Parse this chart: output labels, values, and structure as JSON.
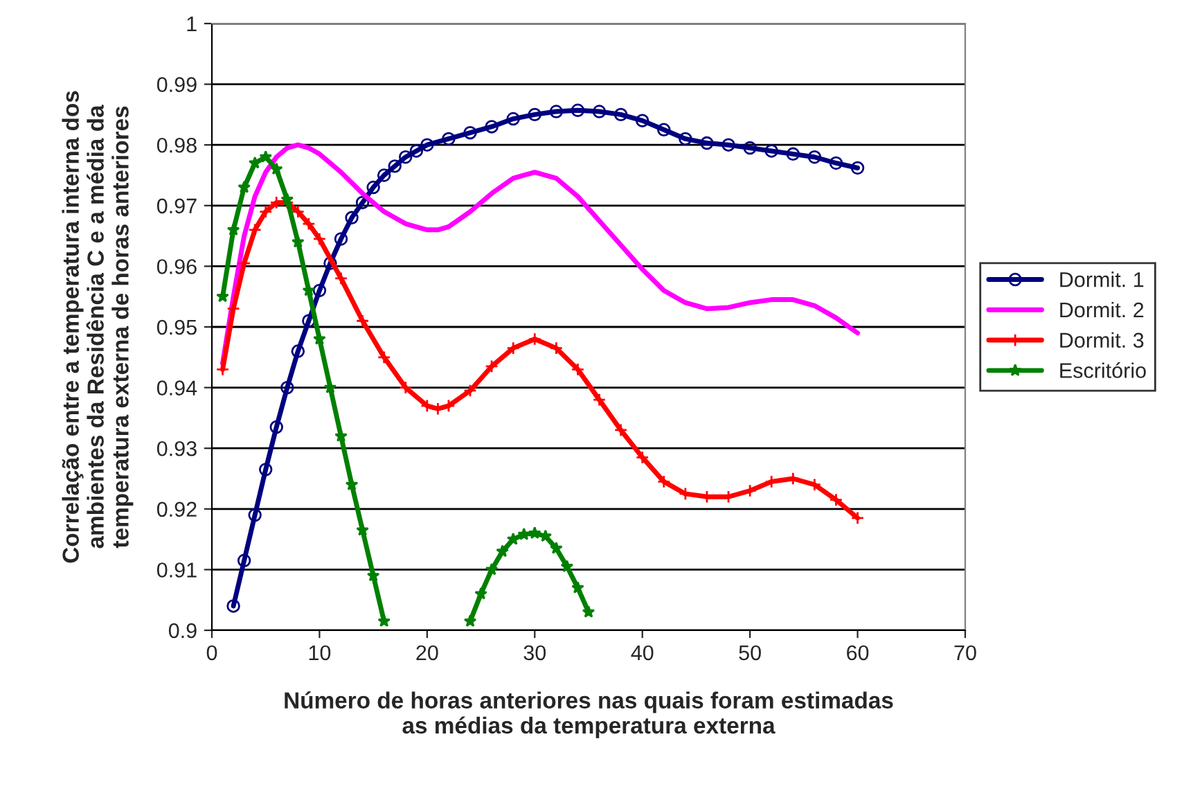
{
  "chart_data": {
    "type": "line",
    "xlabel": "Número de horas anteriores nas quais foram estimadas\nas médias da temperatura externa",
    "ylabel": "Correlação entre a temperatura interna dos\nambientes da Residência C e a média da\ntemperatura externa de horas anteriores",
    "xlim": [
      0,
      70
    ],
    "xticks": [
      0,
      10,
      20,
      30,
      40,
      50,
      60,
      70
    ],
    "ylim": [
      0.9,
      1
    ],
    "yticks": [
      0.9,
      0.91,
      0.92,
      0.93,
      0.94,
      0.95,
      0.96,
      0.97,
      0.98,
      0.99,
      1
    ],
    "grid": "y",
    "legend": "right",
    "series": [
      {
        "name": "Dormit. 1",
        "color": "#000080",
        "marker": "circle",
        "x": [
          2,
          3,
          4,
          5,
          6,
          7,
          8,
          9,
          10,
          11,
          12,
          13,
          14,
          15,
          16,
          17,
          18,
          19,
          20,
          22,
          24,
          26,
          28,
          30,
          32,
          34,
          36,
          38,
          40,
          42,
          44,
          46,
          48,
          50,
          52,
          54,
          56,
          58,
          60
        ],
        "values": [
          0.904,
          0.9115,
          0.919,
          0.9265,
          0.9335,
          0.94,
          0.946,
          0.951,
          0.956,
          0.9605,
          0.9645,
          0.968,
          0.9705,
          0.973,
          0.975,
          0.9765,
          0.978,
          0.979,
          0.98,
          0.981,
          0.982,
          0.983,
          0.9843,
          0.985,
          0.9855,
          0.9857,
          0.9855,
          0.985,
          0.984,
          0.9825,
          0.981,
          0.9803,
          0.98,
          0.9795,
          0.979,
          0.9785,
          0.978,
          0.977,
          0.9762
        ]
      },
      {
        "name": "Dormit. 2",
        "color": "#ff00ff",
        "marker": "none",
        "x": [
          1,
          2,
          3,
          4,
          5,
          6,
          7,
          8,
          9,
          10,
          12,
          14,
          16,
          18,
          20,
          21,
          22,
          24,
          26,
          28,
          30,
          32,
          34,
          36,
          38,
          40,
          42,
          44,
          46,
          48,
          50,
          52,
          54,
          56,
          58,
          60
        ],
        "values": [
          0.944,
          0.955,
          0.965,
          0.9715,
          0.9755,
          0.978,
          0.9795,
          0.98,
          0.9795,
          0.9785,
          0.9755,
          0.972,
          0.969,
          0.967,
          0.966,
          0.966,
          0.9665,
          0.969,
          0.972,
          0.9745,
          0.9755,
          0.9745,
          0.9715,
          0.9675,
          0.9635,
          0.9595,
          0.956,
          0.954,
          0.953,
          0.9532,
          0.954,
          0.9545,
          0.9545,
          0.9535,
          0.9515,
          0.949
        ]
      },
      {
        "name": "Dormit. 3",
        "color": "#ff0000",
        "marker": "cross",
        "x": [
          1,
          2,
          3,
          4,
          5,
          6,
          7,
          8,
          9,
          10,
          12,
          14,
          16,
          18,
          20,
          21,
          22,
          24,
          26,
          28,
          30,
          32,
          34,
          36,
          38,
          40,
          42,
          44,
          46,
          48,
          50,
          52,
          54,
          56,
          58,
          60
        ],
        "values": [
          0.943,
          0.953,
          0.9605,
          0.966,
          0.969,
          0.9705,
          0.9705,
          0.969,
          0.967,
          0.9645,
          0.958,
          0.951,
          0.945,
          0.94,
          0.937,
          0.9365,
          0.937,
          0.9395,
          0.9435,
          0.9465,
          0.948,
          0.9465,
          0.943,
          0.938,
          0.933,
          0.9285,
          0.9245,
          0.9225,
          0.922,
          0.922,
          0.923,
          0.9245,
          0.925,
          0.924,
          0.9215,
          0.9185
        ]
      },
      {
        "name": "Escritório",
        "color": "#008000",
        "marker": "star",
        "x": [
          1,
          2,
          3,
          4,
          5,
          6,
          7,
          8,
          9,
          10,
          11,
          12,
          13,
          14,
          15,
          16,
          20,
          24,
          25,
          26,
          27,
          28,
          29,
          30,
          31,
          32,
          33,
          34,
          35
        ],
        "values": [
          0.955,
          0.966,
          0.973,
          0.977,
          0.978,
          0.976,
          0.971,
          0.964,
          0.956,
          0.948,
          0.94,
          0.932,
          0.924,
          0.9165,
          0.909,
          0.9015,
          null,
          0.9015,
          0.906,
          0.91,
          0.913,
          0.915,
          0.9158,
          0.916,
          0.9155,
          0.9135,
          0.9105,
          0.907,
          0.903
        ]
      }
    ]
  }
}
